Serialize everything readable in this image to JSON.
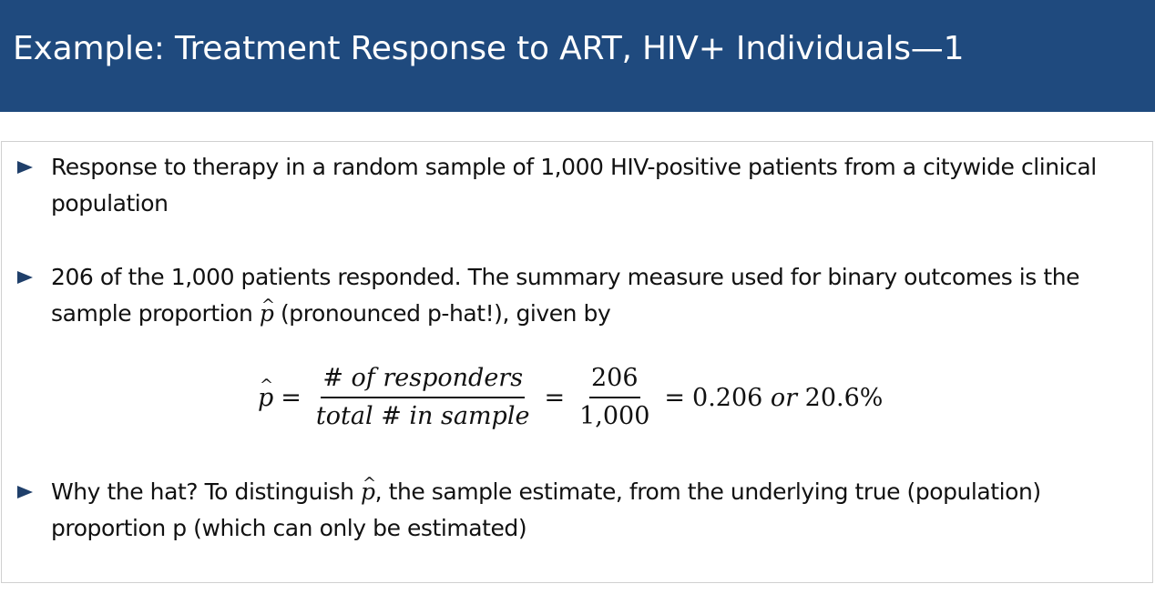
{
  "slide": {
    "title": "Example: Treatment Response to ART, HIV+ Individuals—1"
  },
  "bullets": [
    {
      "text": "Response to therapy in a random sample of 1,000 HIV-positive patients from a citywide clinical population"
    },
    {
      "text_before": "206 of the 1,000 patients responded. The summary measure used for binary outcomes is the sample proportion ",
      "text_after": " (pronounced p-hat!), given by"
    },
    {
      "text_before": "Why the hat? To distinguish ",
      "text_after": ", the sample estimate, from the underlying true (population) proportion p (which can only be estimated)"
    }
  ],
  "formula": {
    "lhs": "p",
    "hat": "^",
    "equals": "=",
    "fraction1_numerator": "# of responders",
    "fraction1_denominator": "total # in sample",
    "fraction2_numerator": "206",
    "fraction2_denominator": "1,000",
    "result_value": "0.206",
    "result_or": "or",
    "result_percent": "20.6%"
  }
}
